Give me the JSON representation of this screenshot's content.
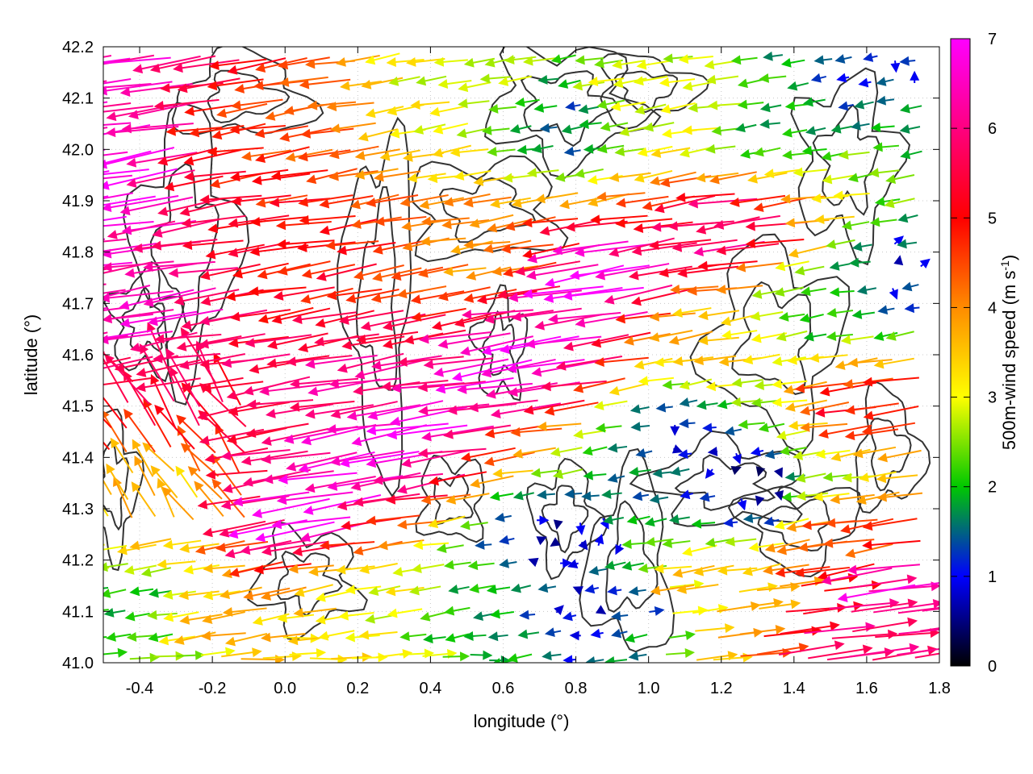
{
  "chart_data": {
    "type": "vector-field",
    "xlabel": "longitude (°)",
    "ylabel": "latitude (°)",
    "xlim": [
      -0.5,
      1.8
    ],
    "ylim": [
      41.0,
      42.2
    ],
    "x_ticks": [
      "-0.4",
      "-0.2",
      "0.0",
      "0.2",
      "0.4",
      "0.6",
      "0.8",
      "1.0",
      "1.2",
      "1.4",
      "1.6",
      "1.8"
    ],
    "y_ticks": [
      "41.0",
      "41.1",
      "41.2",
      "41.3",
      "41.4",
      "41.5",
      "41.6",
      "41.7",
      "41.8",
      "41.9",
      "42.0",
      "42.1",
      "42.2"
    ],
    "grid": true,
    "colorbar": {
      "label_main": "500m-wind speed (m s",
      "label_sup": "-1",
      "label_end": ")",
      "range": [
        0,
        7
      ],
      "ticks": [
        "0",
        "1",
        "2",
        "3",
        "4",
        "5",
        "6",
        "7"
      ],
      "colors": [
        "#000000",
        "#0000ff",
        "#00c800",
        "#ffff00",
        "#ff8c00",
        "#ff0000",
        "#ff00ff"
      ]
    },
    "contour_color": "#333333",
    "wind_zones": [
      {
        "lon": -0.45,
        "lat": 41.95,
        "speed": 7.0
      },
      {
        "lon": -0.35,
        "lat": 42.15,
        "speed": 6.5
      },
      {
        "lon": -0.3,
        "lat": 41.7,
        "speed": 6.5
      },
      {
        "lon": -0.25,
        "lat": 41.5,
        "speed": 5.5
      },
      {
        "lon": -0.3,
        "lat": 41.3,
        "speed": 3.5
      },
      {
        "lon": -0.4,
        "lat": 41.1,
        "speed": 2.0
      },
      {
        "lon": -0.1,
        "lat": 41.05,
        "speed": 3.5
      },
      {
        "lon": 0.15,
        "lat": 41.8,
        "speed": 5.0
      },
      {
        "lon": 0.0,
        "lat": 42.05,
        "speed": 4.5
      },
      {
        "lon": 0.3,
        "lat": 41.55,
        "speed": 6.0
      },
      {
        "lon": 0.4,
        "lat": 41.45,
        "speed": 7.0
      },
      {
        "lon": 0.15,
        "lat": 41.3,
        "speed": 7.0
      },
      {
        "lon": 0.75,
        "lat": 41.6,
        "speed": 7.0
      },
      {
        "lon": 0.95,
        "lat": 41.75,
        "speed": 7.0
      },
      {
        "lon": 0.6,
        "lat": 41.8,
        "speed": 4.0
      },
      {
        "lon": 0.5,
        "lat": 42.1,
        "speed": 3.0
      },
      {
        "lon": 0.8,
        "lat": 42.05,
        "speed": 1.5
      },
      {
        "lon": 1.05,
        "lat": 42.1,
        "speed": 3.0
      },
      {
        "lon": 1.4,
        "lat": 42.05,
        "speed": 2.0
      },
      {
        "lon": 1.6,
        "lat": 42.15,
        "speed": 1.2
      },
      {
        "lon": 1.3,
        "lat": 41.85,
        "speed": 6.0
      },
      {
        "lon": 1.2,
        "lat": 41.65,
        "speed": 3.5
      },
      {
        "lon": 1.5,
        "lat": 41.7,
        "speed": 2.0
      },
      {
        "lon": 1.7,
        "lat": 41.75,
        "speed": 1.0
      },
      {
        "lon": 1.1,
        "lat": 41.45,
        "speed": 1.0
      },
      {
        "lon": 1.3,
        "lat": 41.35,
        "speed": 0.4
      },
      {
        "lon": 1.5,
        "lat": 41.4,
        "speed": 2.5
      },
      {
        "lon": 1.65,
        "lat": 41.5,
        "speed": 5.0
      },
      {
        "lon": 0.75,
        "lat": 41.25,
        "speed": 0.5
      },
      {
        "lon": 0.85,
        "lat": 41.1,
        "speed": 0.8
      },
      {
        "lon": 0.55,
        "lat": 41.1,
        "speed": 2.0
      },
      {
        "lon": 0.3,
        "lat": 41.15,
        "speed": 3.0
      },
      {
        "lon": 1.2,
        "lat": 41.15,
        "speed": 3.5
      },
      {
        "lon": 1.5,
        "lat": 41.05,
        "speed": 6.0
      },
      {
        "lon": 1.7,
        "lat": 41.15,
        "speed": 6.5
      },
      {
        "lon": 1.65,
        "lat": 41.25,
        "speed": 4.5
      }
    ]
  }
}
